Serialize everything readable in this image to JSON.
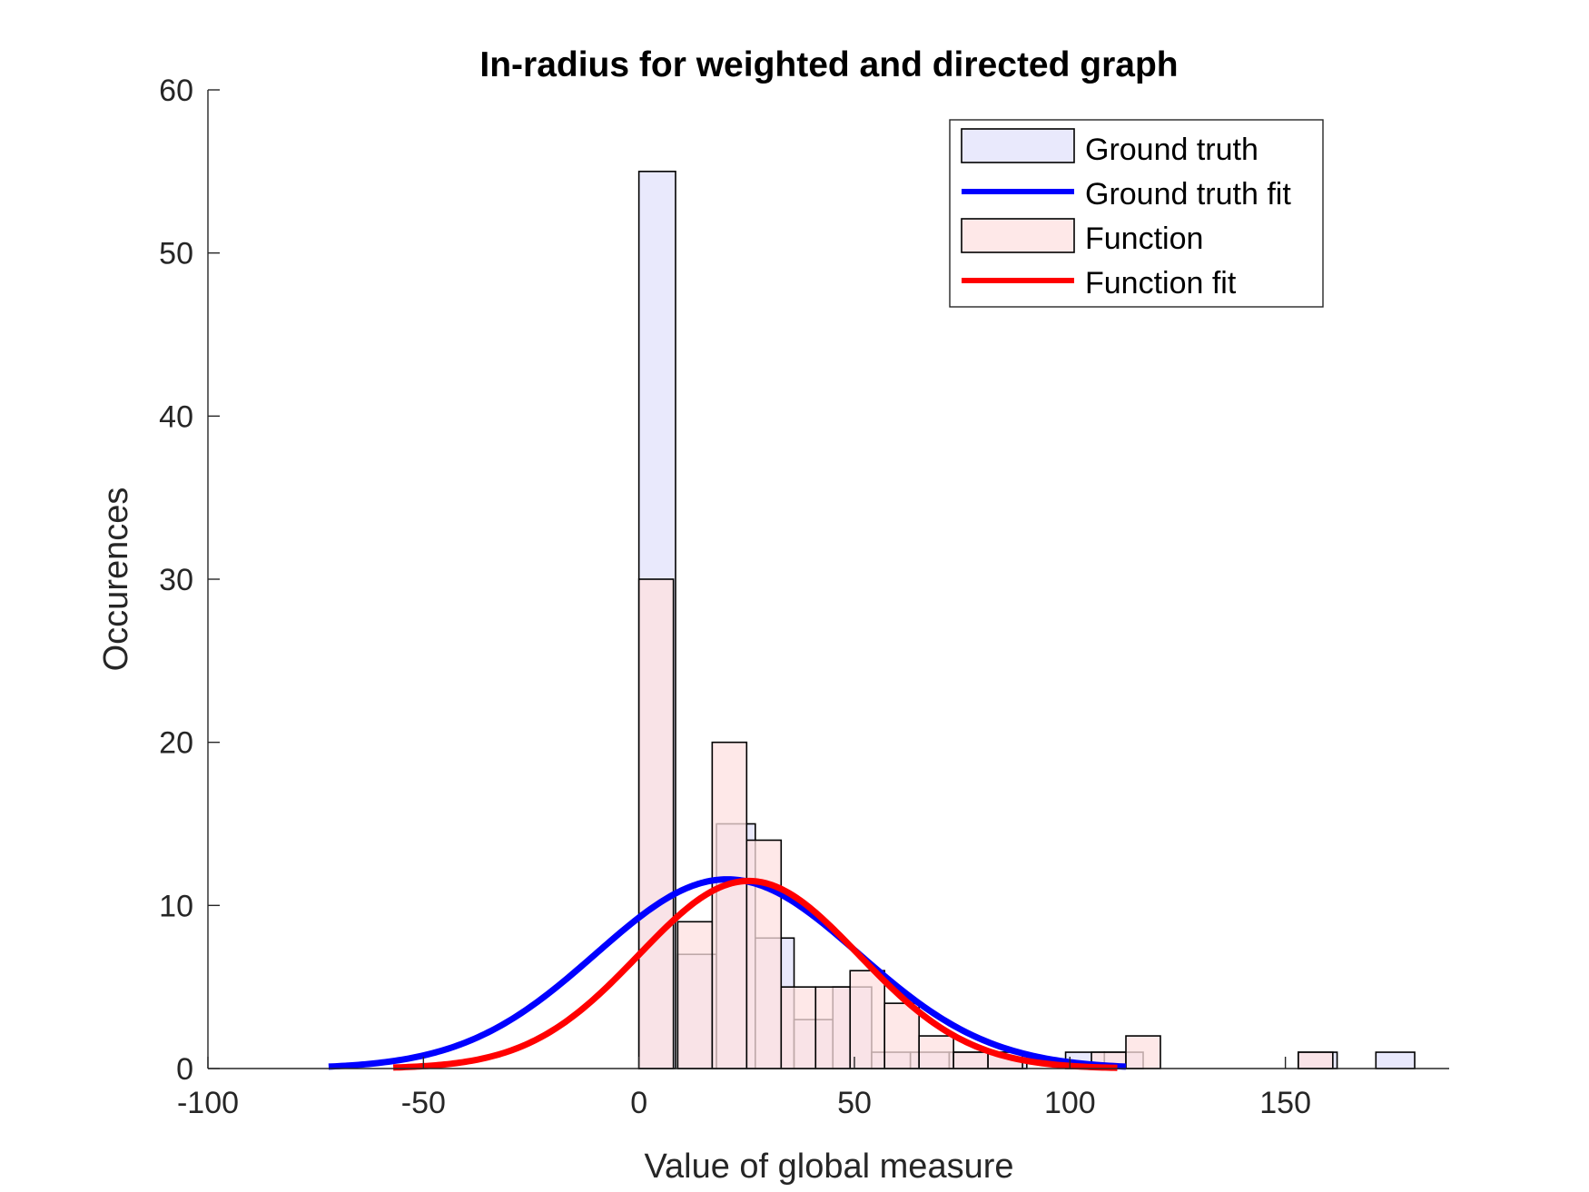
{
  "chart_data": {
    "type": "bar",
    "title": "In-radius for weighted and directed graph",
    "xlabel": "Value of global measure",
    "ylabel": "Occurences",
    "xlim": [
      -100,
      188
    ],
    "ylim": [
      0,
      60
    ],
    "xticks": [
      -100,
      -50,
      0,
      50,
      100,
      150
    ],
    "yticks": [
      0,
      10,
      20,
      30,
      40,
      50,
      60
    ],
    "xtick_labels": [
      "-100",
      "-50",
      "0",
      "50",
      "100",
      "150"
    ],
    "ytick_labels": [
      "0",
      "10",
      "20",
      "30",
      "40",
      "50",
      "60"
    ],
    "legend_position": "top-right",
    "series": [
      {
        "name": "Ground truth",
        "kind": "histogram",
        "color": "#e1e1fb",
        "bins": [
          {
            "x0": 0,
            "x1": 8.5,
            "count": 55
          },
          {
            "x0": 9,
            "x1": 18,
            "count": 7
          },
          {
            "x0": 18,
            "x1": 27,
            "count": 15
          },
          {
            "x0": 27,
            "x1": 36,
            "count": 8
          },
          {
            "x0": 36,
            "x1": 45,
            "count": 3
          },
          {
            "x0": 45,
            "x1": 54,
            "count": 5
          },
          {
            "x0": 54,
            "x1": 63,
            "count": 1
          },
          {
            "x0": 63,
            "x1": 72,
            "count": 1
          },
          {
            "x0": 72,
            "x1": 81,
            "count": 1
          },
          {
            "x0": 81,
            "x1": 90,
            "count": 1
          },
          {
            "x0": 99,
            "x1": 108,
            "count": 1
          },
          {
            "x0": 108,
            "x1": 117,
            "count": 1
          },
          {
            "x0": 153,
            "x1": 162,
            "count": 1
          },
          {
            "x0": 171,
            "x1": 180,
            "count": 1
          }
        ]
      },
      {
        "name": "Ground truth fit",
        "kind": "line",
        "color": "#0000ff",
        "fit": {
          "amplitude": 11.6,
          "mean": 20.5,
          "sd": 30.5,
          "x_start": -72,
          "x_end": 113
        }
      },
      {
        "name": "Function",
        "kind": "histogram",
        "color": "#fde0e0",
        "bins": [
          {
            "x0": 0,
            "x1": 8,
            "count": 30
          },
          {
            "x0": 9,
            "x1": 17,
            "count": 9
          },
          {
            "x0": 17,
            "x1": 25,
            "count": 20
          },
          {
            "x0": 25,
            "x1": 33,
            "count": 14
          },
          {
            "x0": 33,
            "x1": 41,
            "count": 5
          },
          {
            "x0": 41,
            "x1": 49,
            "count": 5
          },
          {
            "x0": 49,
            "x1": 57,
            "count": 6
          },
          {
            "x0": 57,
            "x1": 65,
            "count": 4
          },
          {
            "x0": 65,
            "x1": 73,
            "count": 2
          },
          {
            "x0": 73,
            "x1": 81,
            "count": 1
          },
          {
            "x0": 81,
            "x1": 89,
            "count": 1
          },
          {
            "x0": 105,
            "x1": 113,
            "count": 1
          },
          {
            "x0": 113,
            "x1": 121,
            "count": 2
          },
          {
            "x0": 153,
            "x1": 161,
            "count": 1
          }
        ]
      },
      {
        "name": "Function fit",
        "kind": "line",
        "color": "#ff0000",
        "fit": {
          "amplitude": 11.5,
          "mean": 25.5,
          "sd": 25.5,
          "x_start": -57,
          "x_end": 111
        }
      }
    ]
  }
}
